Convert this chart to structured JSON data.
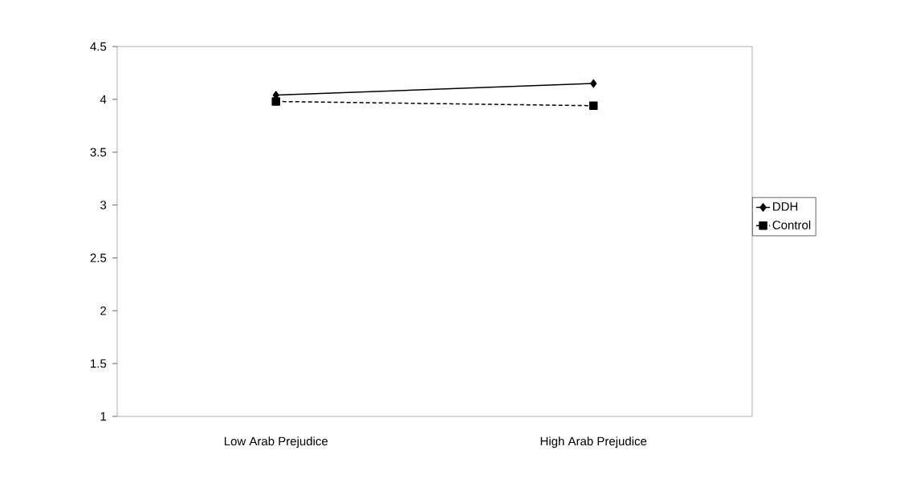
{
  "chart_data": {
    "type": "line",
    "categories": [
      "Low Arab Prejudice",
      "High Arab Prejudice"
    ],
    "series": [
      {
        "name": "DDH",
        "color": "#000000",
        "values": [
          4.04,
          4.15
        ],
        "marker": "diamond",
        "line_style": "solid"
      },
      {
        "name": "Control",
        "color": "#000000",
        "values": [
          3.98,
          3.94
        ],
        "marker": "square",
        "line_style": "dashed"
      }
    ],
    "ylim": [
      1,
      4.5
    ],
    "yticks": [
      1,
      1.5,
      2,
      2.5,
      3,
      3.5,
      4,
      4.5
    ],
    "grid": false,
    "legend": "right"
  }
}
